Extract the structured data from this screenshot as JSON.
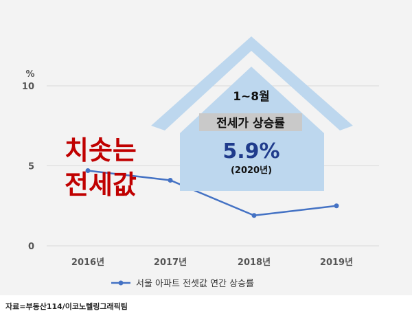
{
  "chart_data": {
    "type": "line",
    "ylabel": "%",
    "ylim": [
      0,
      10
    ],
    "yticks": [
      "0",
      "5",
      "10"
    ],
    "categories": [
      "2016년",
      "2017년",
      "2018년",
      "2019년"
    ],
    "series": [
      {
        "name": "서울 아파트 전셋값 연간 상승률",
        "values": [
          4.7,
          4.1,
          1.9,
          2.5
        ],
        "color": "#4472c4"
      }
    ],
    "grid": true,
    "legend": "bottom"
  },
  "headline": {
    "line1": "치솟는",
    "line2": "전세값",
    "color": "#c00000"
  },
  "house": {
    "period": "1~8월",
    "label": "전세가 상승률",
    "value": "5.9%",
    "year": "(2020년)",
    "fill": "#bdd7ee",
    "value_color": "#1f3b8c"
  },
  "source": "자료=부동산114/이코노텔링그래픽팀"
}
